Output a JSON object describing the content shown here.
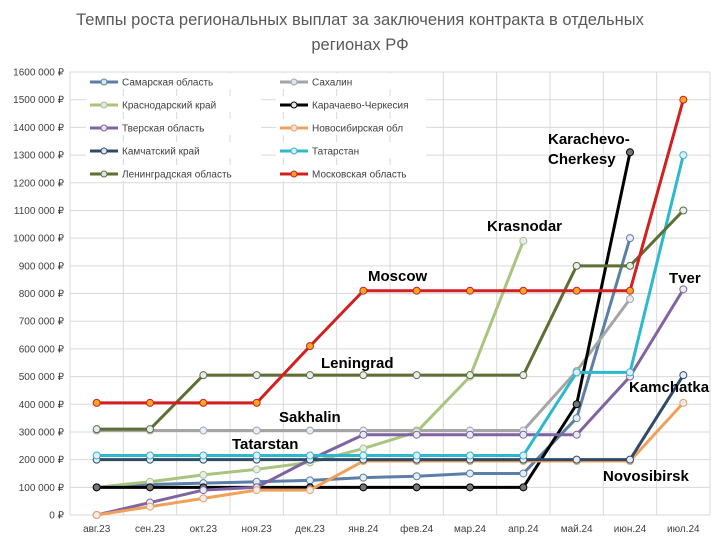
{
  "chart_data": {
    "type": "line",
    "title": "Темпы роста региональных выплат за заключения контракта в отдельных регионах РФ",
    "categories": [
      "авг.23",
      "сен.23",
      "окт.23",
      "ноя.23",
      "дек.23",
      "янв.24",
      "фев.24",
      "мар.24",
      "апр.24",
      "май.24",
      "июн.24",
      "июл.24"
    ],
    "ylim": [
      0,
      1600000
    ],
    "yticks": [
      "0 ₽",
      "100 000 ₽",
      "200 000 ₽",
      "300 000 ₽",
      "400 000 ₽",
      "500 000 ₽",
      "600 000 ₽",
      "700 000 ₽",
      "800 000 ₽",
      "900 000 ₽",
      "1000 000 ₽",
      "1100 000 ₽",
      "1200 000 ₽",
      "1300 000 ₽",
      "1400 000 ₽",
      "1500 000 ₽",
      "1600 000 ₽"
    ],
    "grid": true,
    "legend_position": "top-left",
    "series": [
      {
        "name": "Самарская область",
        "color": "#5b7fa6",
        "values": [
          100000,
          110000,
          115000,
          120000,
          125000,
          135000,
          140000,
          150000,
          150000,
          350000,
          1000000,
          null
        ]
      },
      {
        "name": "Сахалин",
        "color": "#a5a5a5",
        "values": [
          305000,
          305000,
          305000,
          305000,
          305000,
          305000,
          305000,
          305000,
          305000,
          520000,
          780000,
          null
        ]
      },
      {
        "name": "Краснодарский край",
        "color": "#a9c47f",
        "values": [
          100000,
          120000,
          145000,
          165000,
          190000,
          240000,
          300000,
          500000,
          990000,
          null,
          null,
          null
        ]
      },
      {
        "name": "Карачаево-Черкесия",
        "color": "#000000",
        "values": [
          100000,
          100000,
          100000,
          100000,
          100000,
          100000,
          100000,
          100000,
          100000,
          400000,
          1310000,
          null
        ]
      },
      {
        "name": "Тверская область",
        "color": "#8064a2",
        "values": [
          0,
          45000,
          90000,
          100000,
          200000,
          290000,
          290000,
          290000,
          290000,
          290000,
          500000,
          815000
        ]
      },
      {
        "name": "Новосибирская обл",
        "color": "#f0a05a",
        "values": [
          0,
          30000,
          60000,
          90000,
          90000,
          195000,
          195000,
          195000,
          195000,
          195000,
          195000,
          405000
        ]
      },
      {
        "name": "Камчатский край",
        "color": "#2f4a68",
        "values": [
          200000,
          200000,
          200000,
          200000,
          200000,
          200000,
          200000,
          200000,
          200000,
          200000,
          200000,
          505000
        ]
      },
      {
        "name": "Татарстан",
        "color": "#2eb8cf",
        "values": [
          215000,
          215000,
          215000,
          215000,
          215000,
          215000,
          215000,
          215000,
          215000,
          515000,
          515000,
          1300000
        ]
      },
      {
        "name": "Ленинградская область",
        "color": "#5e6e35",
        "values": [
          310000,
          310000,
          505000,
          505000,
          505000,
          505000,
          505000,
          505000,
          505000,
          900000,
          900000,
          1100000
        ]
      },
      {
        "name": "Московская область",
        "color": "#d21f1f",
        "values": [
          405000,
          405000,
          405000,
          405000,
          610000,
          810000,
          810000,
          810000,
          810000,
          810000,
          810000,
          1500000
        ]
      }
    ],
    "annotations": [
      "Karachevo-",
      "Cherkesy",
      "Krasnodar",
      "Moscow",
      "Leningrad",
      "Sakhalin",
      "Tatarstan",
      "Tver",
      "Kamchatka",
      "Novosibirsk"
    ]
  }
}
